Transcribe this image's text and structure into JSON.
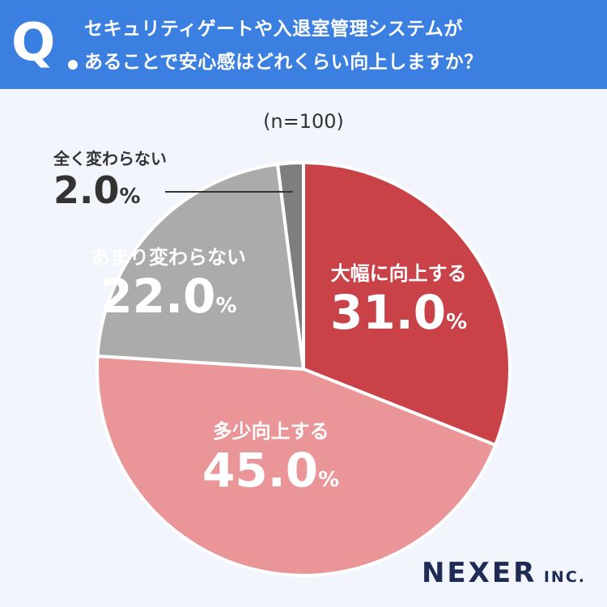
{
  "header": {
    "q_mark": "Q",
    "line1": "セキュリティゲートや入退室管理システムが",
    "line2": "あることで安心感はどれくらい向上しますか？"
  },
  "sample_size": "(n=100)",
  "logo": {
    "main": "NEXER",
    "sub": "INC."
  },
  "chart_data": {
    "type": "pie",
    "start": "top",
    "direction": "clockwise",
    "slices": [
      {
        "label": "大幅に向上する",
        "value": 31.0,
        "display": "31.0",
        "color": "#c94248",
        "text_color": "#ffffff"
      },
      {
        "label": "多少向上する",
        "value": 45.0,
        "display": "45.0",
        "color": "#ea9597",
        "text_color": "#ffffff"
      },
      {
        "label": "あまり変わらない",
        "value": 22.0,
        "display": "22.0",
        "color": "#ababab",
        "text_color": "#ffffff"
      },
      {
        "label": "全く変わらない",
        "value": 2.0,
        "display": "2.0",
        "color": "#7e7e7e",
        "text_color": "#333333"
      }
    ],
    "unit": "%"
  }
}
